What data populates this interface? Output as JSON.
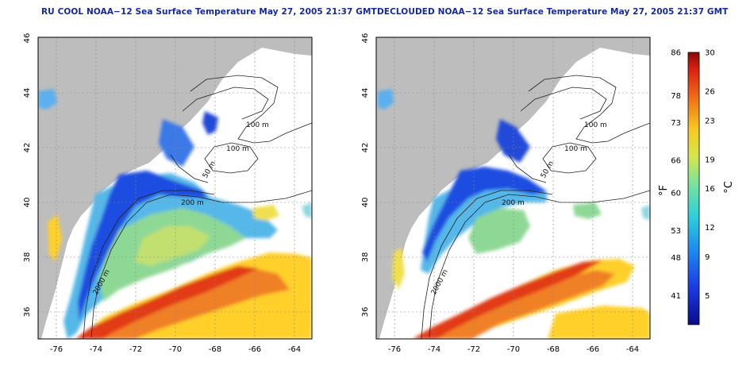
{
  "panels": [
    {
      "id": "left",
      "title": "RU COOL NOAA−12 Sea Surface Temperature May 27, 2005 21:37 GMT"
    },
    {
      "id": "right",
      "title": "DECLOUDED NOAA−12 Sea Surface Temperature May 27, 2005 21:37 GMT"
    }
  ],
  "x_ticks": [
    "-76",
    "-74",
    "-72",
    "-70",
    "-68",
    "-66",
    "-64"
  ],
  "y_ticks": [
    "46",
    "44",
    "42",
    "40",
    "38",
    "36"
  ],
  "contour_labels": [
    "100 m",
    "100 m",
    "50 m",
    "200 m",
    "200 m",
    "2000 m"
  ],
  "colorbar": {
    "celsius_label": "°C",
    "fahrenheit_label": "°F",
    "celsius_ticks": [
      "30",
      "26",
      "23",
      "19",
      "16",
      "12",
      "9",
      "5"
    ],
    "fahrenheit_ticks": [
      "86",
      "78",
      "73",
      "66",
      "60",
      "53",
      "48",
      "41"
    ],
    "range_c": [
      2,
      30
    ]
  },
  "colors": {
    "land": "#bdbdbd",
    "title": "#1428a0",
    "warm": "#e03a10",
    "cold": "#1e3cd8"
  }
}
